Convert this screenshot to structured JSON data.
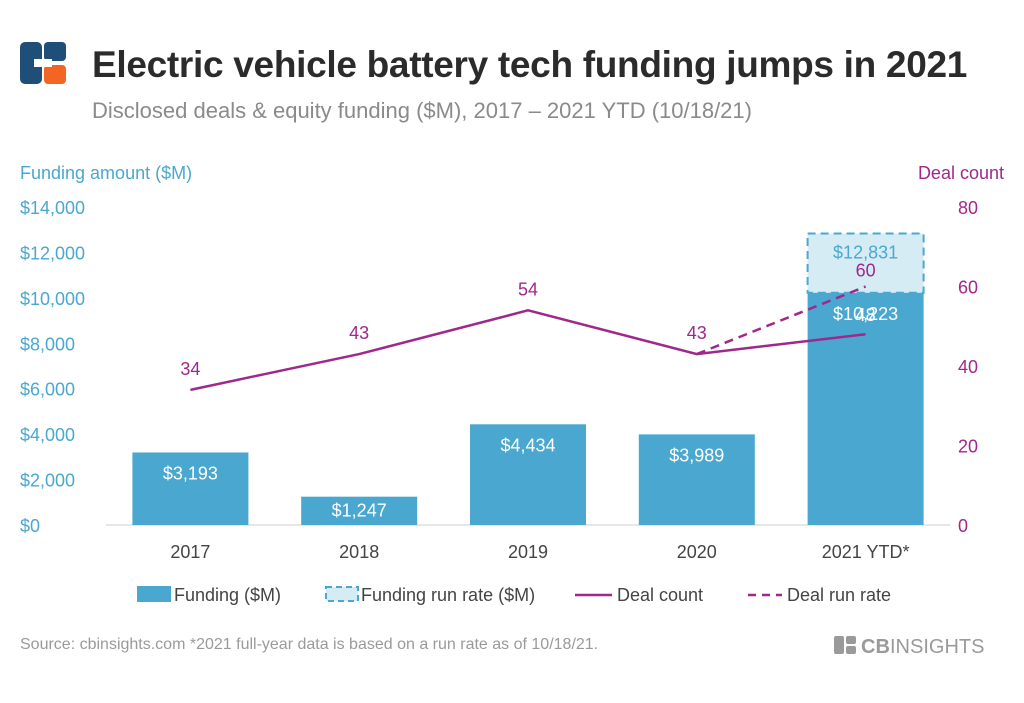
{
  "header": {
    "title": "Electric vehicle battery tech funding jumps in 2021",
    "subtitle": "Disclosed deals & equity funding ($M), 2017 – 2021 YTD (10/18/21)"
  },
  "footer": {
    "source": "Source: cbinsights.com  *2021 full-year data is based on a run rate as of 10/18/21.",
    "brand_cb": "CB",
    "brand_insights": "INSIGHTS"
  },
  "colors": {
    "bar": "#4aa8d0",
    "runrate_fill": "#d6ecf5",
    "line": "#a0288c",
    "axis_left": "#4aa8d0",
    "axis_right": "#a0288c",
    "logo_blue": "#1f4e79",
    "logo_orange": "#f26522"
  },
  "icons": {
    "logo": "cb-insights-logo-icon"
  },
  "chart_data": {
    "type": "bar",
    "categories": [
      "2017",
      "2018",
      "2019",
      "2020",
      "2021 YTD*"
    ],
    "y_left": {
      "label": "Funding amount ($M)",
      "range": [
        0,
        14000
      ],
      "ticks": [
        0,
        2000,
        4000,
        6000,
        8000,
        10000,
        12000,
        14000
      ],
      "tick_labels": [
        "$0",
        "$2,000",
        "$4,000",
        "$6,000",
        "$8,000",
        "$10,000",
        "$12,000",
        "$14,000"
      ]
    },
    "y_right": {
      "label": "Deal count",
      "range": [
        0,
        80
      ],
      "ticks": [
        0,
        20,
        40,
        60,
        80
      ],
      "tick_labels": [
        "0",
        "20",
        "40",
        "60",
        "80"
      ]
    },
    "series": [
      {
        "name": "Funding ($M)",
        "type": "bar",
        "axis": "left",
        "values": [
          3193,
          1247,
          4434,
          3989,
          10223
        ],
        "labels": [
          "$3,193",
          "$1,247",
          "$4,434",
          "$3,989",
          "$10,223"
        ]
      },
      {
        "name": "Funding run rate ($M)",
        "type": "bar-dashed",
        "axis": "left",
        "values": [
          null,
          null,
          null,
          null,
          12831
        ],
        "labels": [
          "",
          "",
          "",
          "",
          "$12,831"
        ]
      },
      {
        "name": "Deal count",
        "type": "line",
        "axis": "right",
        "values": [
          34,
          43,
          54,
          43,
          48
        ],
        "labels": [
          "34",
          "43",
          "54",
          "43",
          "48"
        ]
      },
      {
        "name": "Deal run rate",
        "type": "line-dashed",
        "axis": "right",
        "values": [
          null,
          null,
          null,
          43,
          60
        ],
        "labels": [
          "",
          "",
          "",
          "",
          "60"
        ]
      }
    ],
    "legend": [
      "Funding ($M)",
      "Funding run rate ($M)",
      "Deal count",
      "Deal run rate"
    ],
    "legend_position": "bottom",
    "grid": false
  }
}
